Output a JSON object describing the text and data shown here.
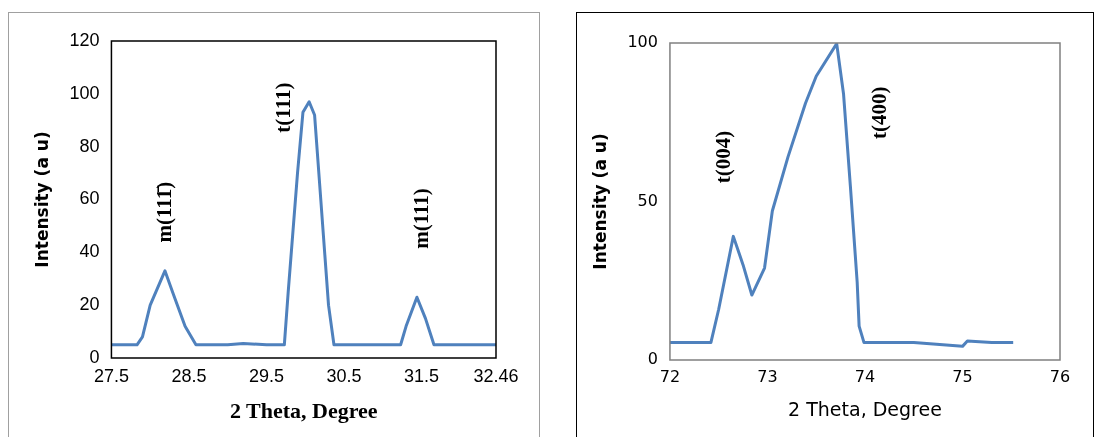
{
  "chart_data": [
    {
      "type": "line",
      "xlabel": "2 Theta, Degree",
      "ylabel": "Intensity (a u)",
      "xlim": [
        27.5,
        32.46
      ],
      "xticks": [
        27.5,
        28.5,
        29.5,
        30.5,
        31.5,
        32.46
      ],
      "ylim": [
        0,
        120
      ],
      "yticks": [
        0,
        20,
        40,
        60,
        80,
        100,
        120
      ],
      "grid": false,
      "legend": false,
      "marker": "none",
      "line_style": "solid",
      "series": [
        {
          "color": "#4f81bd",
          "x": [
            27.5,
            27.83,
            27.9,
            28.0,
            28.19,
            28.3,
            28.45,
            28.59,
            29.0,
            29.2,
            29.5,
            29.73,
            29.78,
            29.9,
            29.97,
            30.05,
            30.12,
            30.2,
            30.3,
            30.37,
            30.6,
            31.0,
            31.23,
            31.3,
            31.44,
            31.55,
            31.66,
            32.0,
            32.46
          ],
          "values": [
            5,
            5,
            8,
            20,
            33,
            24,
            12,
            5,
            5,
            5.5,
            5,
            5,
            25,
            70,
            93,
            97,
            92,
            60,
            20,
            5,
            5,
            5,
            5,
            12,
            23,
            15,
            5,
            5,
            5
          ]
        }
      ],
      "annotations": [
        "m(111̄)",
        "t(111)",
        "m(111)"
      ]
    },
    {
      "type": "line",
      "xlabel": "2 Theta, Degree",
      "ylabel": "Intensity (a u)",
      "xlim": [
        72,
        76
      ],
      "xticks": [
        72,
        73,
        74,
        75,
        76
      ],
      "ylim": [
        0,
        100
      ],
      "yticks": [
        0,
        50,
        100
      ],
      "grid": false,
      "legend": false,
      "marker": "none",
      "line_style": "solid",
      "series": [
        {
          "color": "#4f81bd",
          "x": [
            72.0,
            72.2,
            72.42,
            72.5,
            72.65,
            72.75,
            72.84,
            72.97,
            73.05,
            73.21,
            73.39,
            73.5,
            73.71,
            73.78,
            73.85,
            73.92,
            73.94,
            73.99,
            74.5,
            75.0,
            75.05,
            75.3,
            75.52
          ],
          "values": [
            5.5,
            5.5,
            5.5,
            16,
            39,
            30,
            20.5,
            29,
            47,
            64,
            81,
            89.5,
            99.8,
            84,
            55,
            24.6,
            10.7,
            5.5,
            5.5,
            4.3,
            6,
            5.5,
            5.5
          ]
        }
      ],
      "annotations": [
        "t(004)",
        "t(400)"
      ]
    }
  ]
}
